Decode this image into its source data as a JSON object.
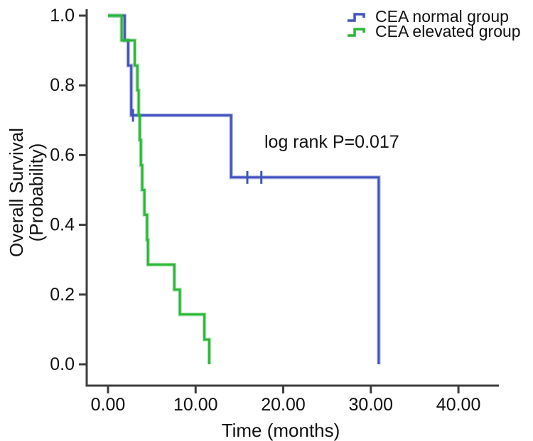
{
  "chart_data": {
    "type": "line",
    "subtype": "kaplan-meier-step",
    "title": "",
    "xlabel": "Time (months)",
    "ylabel_lines": [
      "Overall Survival",
      "(Probability)"
    ],
    "annotation": "log rank P=0.017",
    "xlim": [
      0,
      40
    ],
    "ylim": [
      0.0,
      1.0
    ],
    "grid": false,
    "legend_position": "top-right",
    "x_axis": {
      "tick_values": [
        0,
        10,
        20,
        30,
        40
      ],
      "tick_labels": [
        "0.00",
        "10.00",
        "20.00",
        "30.00",
        "40.00"
      ]
    },
    "y_axis": {
      "tick_values": [
        1.0,
        0.8,
        0.6,
        0.4,
        0.2,
        0.0
      ],
      "tick_labels": [
        "1.0",
        "0.8",
        "0.6",
        "0.4",
        "0.2",
        "0.0"
      ]
    },
    "series": [
      {
        "name": "CEA normal group",
        "color": "#4153c0",
        "points": [
          [
            0,
            1.0
          ],
          [
            1.9,
            1.0
          ],
          [
            1.9,
            0.929
          ],
          [
            2.3,
            0.929
          ],
          [
            2.3,
            0.857
          ],
          [
            2.65,
            0.857
          ],
          [
            2.65,
            0.714
          ],
          [
            14.05,
            0.714
          ],
          [
            14.05,
            0.536
          ],
          [
            30.9,
            0.536
          ],
          [
            30.9,
            0.0
          ]
        ],
        "censors": [
          [
            2.85,
            0.714
          ],
          [
            15.9,
            0.536
          ],
          [
            17.5,
            0.536
          ]
        ]
      },
      {
        "name": "CEA elevated group",
        "color": "#2bb737",
        "points": [
          [
            0,
            1.0
          ],
          [
            1.55,
            1.0
          ],
          [
            1.55,
            0.929
          ],
          [
            3.05,
            0.929
          ],
          [
            3.05,
            0.857
          ],
          [
            3.35,
            0.857
          ],
          [
            3.35,
            0.786
          ],
          [
            3.5,
            0.786
          ],
          [
            3.5,
            0.714
          ],
          [
            3.62,
            0.714
          ],
          [
            3.62,
            0.643
          ],
          [
            3.75,
            0.643
          ],
          [
            3.75,
            0.571
          ],
          [
            3.9,
            0.571
          ],
          [
            3.9,
            0.5
          ],
          [
            4.15,
            0.5
          ],
          [
            4.15,
            0.429
          ],
          [
            4.45,
            0.429
          ],
          [
            4.45,
            0.357
          ],
          [
            4.56,
            0.357
          ],
          [
            4.56,
            0.286
          ],
          [
            7.57,
            0.286
          ],
          [
            7.57,
            0.214
          ],
          [
            8.2,
            0.214
          ],
          [
            8.2,
            0.143
          ],
          [
            11.0,
            0.143
          ],
          [
            11.0,
            0.071
          ],
          [
            11.55,
            0.071
          ],
          [
            11.55,
            0.0
          ]
        ],
        "censors": []
      }
    ]
  },
  "colors": {
    "axis": "#3d3d3d",
    "text": "#111111"
  }
}
